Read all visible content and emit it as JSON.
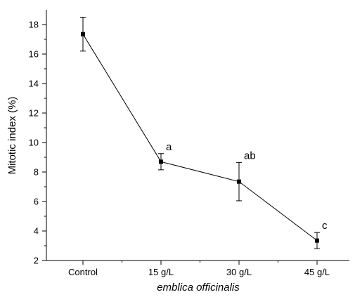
{
  "chart_data": {
    "type": "line",
    "categories": [
      "Control",
      "15 g/L",
      "30 g/L",
      "45 g/L"
    ],
    "series": [
      {
        "values": [
          17.35,
          8.7,
          7.35,
          3.35
        ],
        "error": [
          1.15,
          0.55,
          1.3,
          0.55
        ]
      }
    ],
    "annotations": [
      "",
      "a",
      "ab",
      "c"
    ],
    "xlabel": "emblica officinalis",
    "ylabel": "Mitotic index (%)",
    "ylim": [
      2,
      19
    ],
    "yticks": [
      2,
      4,
      6,
      8,
      10,
      12,
      14,
      16,
      18
    ],
    "grid": false,
    "colors": {
      "line": "#000000",
      "marker": "#000000"
    }
  }
}
